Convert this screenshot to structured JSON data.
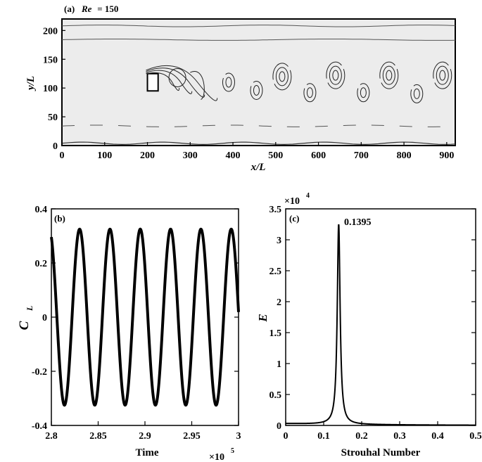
{
  "chart_data": [
    {
      "type": "contour",
      "panel_label": "(a)",
      "title_var": "Re",
      "title_rest": " = 150",
      "xlabel": "x/L",
      "ylabel": "y/L",
      "xlim": [
        0,
        920
      ],
      "ylim": [
        0,
        220
      ],
      "xticks": [
        0,
        100,
        200,
        300,
        400,
        500,
        600,
        700,
        800,
        900
      ],
      "yticks": [
        0,
        50,
        100,
        150,
        200
      ],
      "obstacle": {
        "x": [
          200,
          225
        ],
        "y": [
          95,
          125
        ]
      },
      "vortices": [
        {
          "x": 390,
          "y": 110,
          "n": 2
        },
        {
          "x": 455,
          "y": 96,
          "n": 2
        },
        {
          "x": 515,
          "y": 120,
          "n": 3
        },
        {
          "x": 580,
          "y": 92,
          "n": 2
        },
        {
          "x": 640,
          "y": 122,
          "n": 3
        },
        {
          "x": 705,
          "y": 92,
          "n": 2
        },
        {
          "x": 765,
          "y": 122,
          "n": 3
        },
        {
          "x": 830,
          "y": 90,
          "n": 2
        },
        {
          "x": 890,
          "y": 122,
          "n": 3
        }
      ]
    },
    {
      "type": "line",
      "panel_label": "(b)",
      "xlabel": "Time",
      "x_multiplier": "×10",
      "x_multiplier_exp": "5",
      "ylabel": "C",
      "ylabel_sub": "L",
      "xlim": [
        2.8,
        3.0
      ],
      "ylim": [
        -0.4,
        0.4
      ],
      "xticks": [
        "2.8",
        "2.85",
        "2.9",
        "2.95",
        "3"
      ],
      "yticks": [
        "-0.4",
        "-0.2",
        "0",
        "0.2",
        "0.4"
      ],
      "series": [
        {
          "amplitude": 0.325,
          "period": 0.0324,
          "first_peak_x": 2.8302,
          "x_range": [
            2.8,
            3.0
          ]
        }
      ]
    },
    {
      "type": "line",
      "panel_label": "(c)",
      "xlabel": "Strouhal Number",
      "ylabel": "E",
      "y_multiplier": "×10",
      "y_multiplier_exp": "4",
      "xlim": [
        0,
        0.5
      ],
      "ylim": [
        0,
        3.5
      ],
      "xticks": [
        "0",
        "0.1",
        "0.2",
        "0.3",
        "0.4",
        "0.5"
      ],
      "yticks": [
        "0",
        "0.5",
        "1",
        "1.5",
        "2",
        "2.5",
        "3",
        "3.5"
      ],
      "peak_annotation": "0.1395",
      "series": [
        {
          "peak_x": 0.1395,
          "peak_y": 3.25,
          "baseline": 0.03
        }
      ]
    }
  ]
}
